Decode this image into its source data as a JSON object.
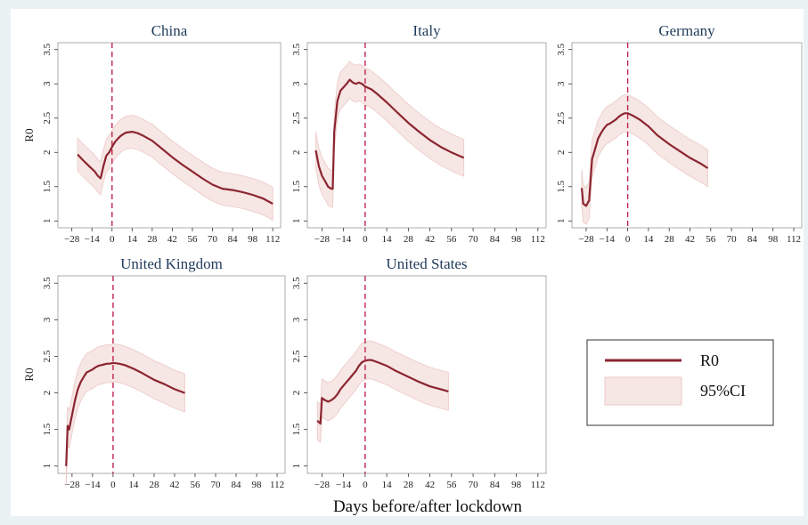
{
  "figure": {
    "xlabel": "Days before/after lockdown",
    "ylabel": "R0",
    "colors": {
      "line": "#8b2530",
      "band": "#f6e6e4",
      "band_edge": "#ecc9c7",
      "lockdown": "#c0264e"
    }
  },
  "legend": {
    "items": [
      "R0",
      "95%CI"
    ]
  },
  "chart_data": [
    {
      "type": "line",
      "title": "China",
      "ylabel": "R0",
      "x_ticks": [
        -28,
        -14,
        0,
        14,
        28,
        42,
        56,
        70,
        84,
        98,
        112
      ],
      "y_ticks": [
        1,
        1.5,
        2,
        2.5,
        3,
        3.5
      ],
      "xlim": [
        -34,
        115
      ],
      "ylim": [
        0.9,
        3.6
      ],
      "lockdown_x": 0,
      "series": [
        {
          "x": [
            -24,
            -20,
            -16,
            -12,
            -10,
            -8,
            -6,
            -4,
            -2,
            0,
            2,
            4,
            6,
            8,
            10,
            14,
            18,
            22,
            28,
            35,
            42,
            49,
            56,
            63,
            70,
            77,
            84,
            91,
            98,
            105,
            112
          ],
          "y": [
            1.97,
            1.88,
            1.8,
            1.72,
            1.66,
            1.62,
            1.8,
            1.95,
            2.0,
            2.08,
            2.15,
            2.2,
            2.24,
            2.27,
            2.29,
            2.3,
            2.28,
            2.24,
            2.17,
            2.05,
            1.93,
            1.82,
            1.72,
            1.62,
            1.53,
            1.47,
            1.45,
            1.42,
            1.38,
            1.33,
            1.25
          ],
          "ci": 0.24
        }
      ]
    },
    {
      "type": "line",
      "title": "Italy",
      "ylabel": "",
      "x_ticks": [
        -28,
        -14,
        0,
        14,
        28,
        42,
        56,
        70,
        84,
        98,
        112
      ],
      "y_ticks": [
        1,
        1.5,
        2,
        2.5,
        3,
        3.5
      ],
      "xlim": [
        -34,
        115
      ],
      "ylim": [
        0.9,
        3.6
      ],
      "lockdown_x": 0,
      "series": [
        {
          "x": [
            -32,
            -30,
            -28,
            -26,
            -24,
            -22,
            -21,
            -20,
            -18,
            -16,
            -14,
            -12,
            -10,
            -8,
            -6,
            -4,
            -2,
            0,
            4,
            8,
            14,
            20,
            28,
            35,
            42,
            49,
            56,
            64
          ],
          "y": [
            2.03,
            1.8,
            1.66,
            1.58,
            1.5,
            1.47,
            1.47,
            2.3,
            2.75,
            2.9,
            2.95,
            3.0,
            3.06,
            3.02,
            3.0,
            3.02,
            3.0,
            2.96,
            2.92,
            2.85,
            2.73,
            2.6,
            2.43,
            2.3,
            2.18,
            2.08,
            2.0,
            1.92
          ],
          "ci": 0.27
        }
      ]
    },
    {
      "type": "line",
      "title": "Germany",
      "ylabel": "",
      "x_ticks": [
        -28,
        -14,
        0,
        14,
        28,
        42,
        56,
        70,
        84,
        98,
        112
      ],
      "y_ticks": [
        1,
        1.5,
        2,
        2.5,
        3,
        3.5
      ],
      "xlim": [
        -34,
        115
      ],
      "ylim": [
        0.9,
        3.6
      ],
      "lockdown_x": 0,
      "series": [
        {
          "x": [
            -31,
            -30,
            -28,
            -26,
            -24,
            -22,
            -20,
            -18,
            -16,
            -14,
            -12,
            -10,
            -8,
            -6,
            -4,
            -2,
            0,
            4,
            8,
            14,
            20,
            28,
            35,
            42,
            49,
            54
          ],
          "y": [
            1.48,
            1.25,
            1.22,
            1.3,
            1.9,
            2.05,
            2.2,
            2.28,
            2.35,
            2.4,
            2.42,
            2.45,
            2.48,
            2.52,
            2.55,
            2.57,
            2.57,
            2.53,
            2.48,
            2.38,
            2.25,
            2.12,
            2.02,
            1.92,
            1.84,
            1.77
          ],
          "ci": 0.27
        }
      ]
    },
    {
      "type": "line",
      "title": "United Kingdom",
      "ylabel": "R0",
      "x_ticks": [
        -28,
        -14,
        0,
        14,
        28,
        42,
        56,
        70,
        84,
        98,
        112
      ],
      "y_ticks": [
        1,
        1.5,
        2,
        2.5,
        3,
        3.5
      ],
      "xlim": [
        -34,
        115
      ],
      "ylim": [
        0.9,
        3.6
      ],
      "lockdown_x": 0,
      "series": [
        {
          "x": [
            -32,
            -31,
            -30,
            -28,
            -26,
            -24,
            -22,
            -20,
            -18,
            -16,
            -14,
            -12,
            -10,
            -8,
            -6,
            -4,
            -2,
            0,
            4,
            8,
            14,
            20,
            28,
            35,
            42,
            49
          ],
          "y": [
            1.0,
            1.55,
            1.5,
            1.7,
            1.9,
            2.05,
            2.15,
            2.22,
            2.28,
            2.3,
            2.32,
            2.35,
            2.37,
            2.38,
            2.39,
            2.4,
            2.4,
            2.41,
            2.4,
            2.38,
            2.33,
            2.27,
            2.18,
            2.12,
            2.05,
            2.0
          ],
          "ci": 0.26
        }
      ]
    },
    {
      "type": "line",
      "title": "United States",
      "ylabel": "",
      "x_ticks": [
        -28,
        -14,
        0,
        14,
        28,
        42,
        56,
        70,
        84,
        98,
        112
      ],
      "y_ticks": [
        1,
        1.5,
        2,
        2.5,
        3,
        3.5
      ],
      "xlim": [
        -34,
        115
      ],
      "ylim": [
        0.9,
        3.6
      ],
      "lockdown_x": 0,
      "series": [
        {
          "x": [
            -31,
            -29,
            -28,
            -26,
            -24,
            -22,
            -20,
            -18,
            -16,
            -14,
            -12,
            -10,
            -8,
            -6,
            -4,
            -2,
            0,
            2,
            4,
            8,
            14,
            20,
            28,
            35,
            42,
            49,
            54
          ],
          "y": [
            1.62,
            1.58,
            1.93,
            1.9,
            1.88,
            1.9,
            1.93,
            1.98,
            2.05,
            2.1,
            2.15,
            2.2,
            2.25,
            2.3,
            2.37,
            2.42,
            2.44,
            2.45,
            2.45,
            2.42,
            2.37,
            2.3,
            2.22,
            2.15,
            2.09,
            2.05,
            2.02
          ],
          "ci": 0.26
        }
      ]
    }
  ]
}
